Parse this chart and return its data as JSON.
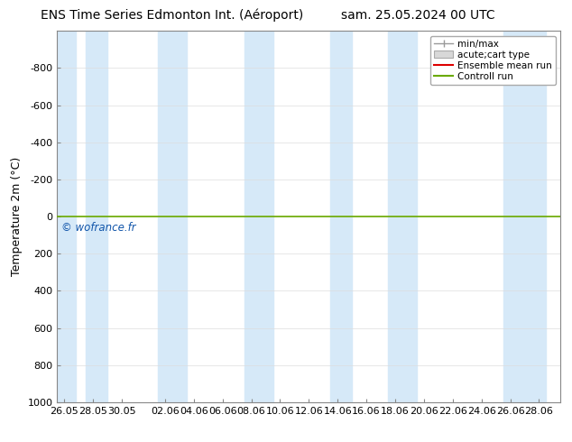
{
  "title_left": "ENS Time Series Edmonton Int. (Aéroport)",
  "title_right": "sam. 25.05.2024 00 UTC",
  "ylabel": "Temperature 2m (°C)",
  "watermark": "© wofrance.fr",
  "ylim_bottom": 1000,
  "ylim_top": -1000,
  "yticks": [
    -800,
    -600,
    -400,
    -200,
    0,
    200,
    400,
    600,
    800,
    1000
  ],
  "xlabels": [
    "26.05",
    "28.05",
    "30.05",
    "02.06",
    "04.06",
    "06.06",
    "08.06",
    "10.06",
    "12.06",
    "14.06",
    "16.06",
    "18.06",
    "20.06",
    "22.06",
    "24.06",
    "26.06",
    "28.06"
  ],
  "x_positions": [
    0,
    2,
    4,
    7,
    9,
    11,
    13,
    15,
    17,
    19,
    21,
    23,
    25,
    27,
    29,
    31,
    33
  ],
  "blue_bands": [
    [
      -0.5,
      0.8
    ],
    [
      1.5,
      3.0
    ],
    [
      6.5,
      8.5
    ],
    [
      12.5,
      14.5
    ],
    [
      18.5,
      20.0
    ],
    [
      22.5,
      24.5
    ],
    [
      30.5,
      33.5
    ]
  ],
  "band_color": "#d6e9f8",
  "bg_color": "#ffffff",
  "control_run_y": 0,
  "control_run_color": "#6aaa00",
  "ensemble_mean_color": "#dd0000",
  "grid_color": "#dddddd",
  "legend_entries": [
    "min/max",
    "acute;cart type",
    "Ensemble mean run",
    "Controll run"
  ],
  "title_fontsize": 10,
  "axis_fontsize": 8,
  "ylabel_fontsize": 9,
  "watermark_color": "#1155aa",
  "x_min": -0.5,
  "x_max": 34.5
}
